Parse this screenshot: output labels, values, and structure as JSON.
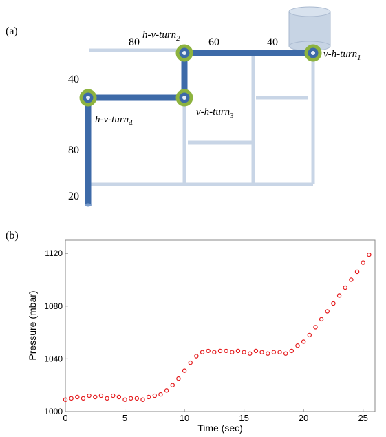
{
  "panel_a": {
    "label": "(a)",
    "lengths": {
      "top_left": "80",
      "top_mid": "60",
      "top_right": "40",
      "left_top": "40",
      "left_mid": "80",
      "left_bottom": "20"
    },
    "turns": [
      {
        "label": "v-h-turn",
        "sub": "1"
      },
      {
        "label": "h-v-turn",
        "sub": "2"
      },
      {
        "label": "v-h-turn",
        "sub": "3"
      },
      {
        "label": "h-v-turn",
        "sub": "4"
      }
    ]
  },
  "panel_b": {
    "label": "(b)"
  },
  "chart_data": {
    "type": "scatter",
    "x_label": "Time (sec)",
    "y_label": "Pressure (mbar)",
    "color": "#e41a1c",
    "x": [
      0,
      0.5,
      1,
      1.5,
      2,
      2.5,
      3,
      3.5,
      4,
      4.5,
      5,
      5.5,
      6,
      6.5,
      7,
      7.5,
      8,
      8.5,
      9,
      9.5,
      10,
      10.5,
      11,
      11.5,
      12,
      12.5,
      13,
      13.5,
      14,
      14.5,
      15,
      15.5,
      16,
      16.5,
      17,
      17.5,
      18,
      18.5,
      19,
      19.5,
      20,
      20.5,
      21,
      21.5,
      22,
      22.5,
      23,
      23.5,
      24,
      24.5,
      25,
      25.5
    ],
    "values": [
      1009,
      1010,
      1011,
      1010,
      1012,
      1011,
      1012,
      1010,
      1012,
      1011,
      1009,
      1010,
      1010,
      1009,
      1011,
      1012,
      1013,
      1016,
      1020,
      1025,
      1031,
      1037,
      1042,
      1045,
      1046,
      1045,
      1046,
      1046,
      1045,
      1046,
      1045,
      1044,
      1046,
      1045,
      1044,
      1045,
      1045,
      1044,
      1046,
      1050,
      1053,
      1058,
      1064,
      1070,
      1076,
      1082,
      1088,
      1094,
      1100,
      1106,
      1113,
      1119
    ],
    "xlim": [
      0,
      26
    ],
    "ylim": [
      1000,
      1130
    ],
    "xticks": [
      0,
      5,
      10,
      15,
      20,
      25
    ],
    "yticks": [
      1000,
      1040,
      1080,
      1120
    ]
  }
}
